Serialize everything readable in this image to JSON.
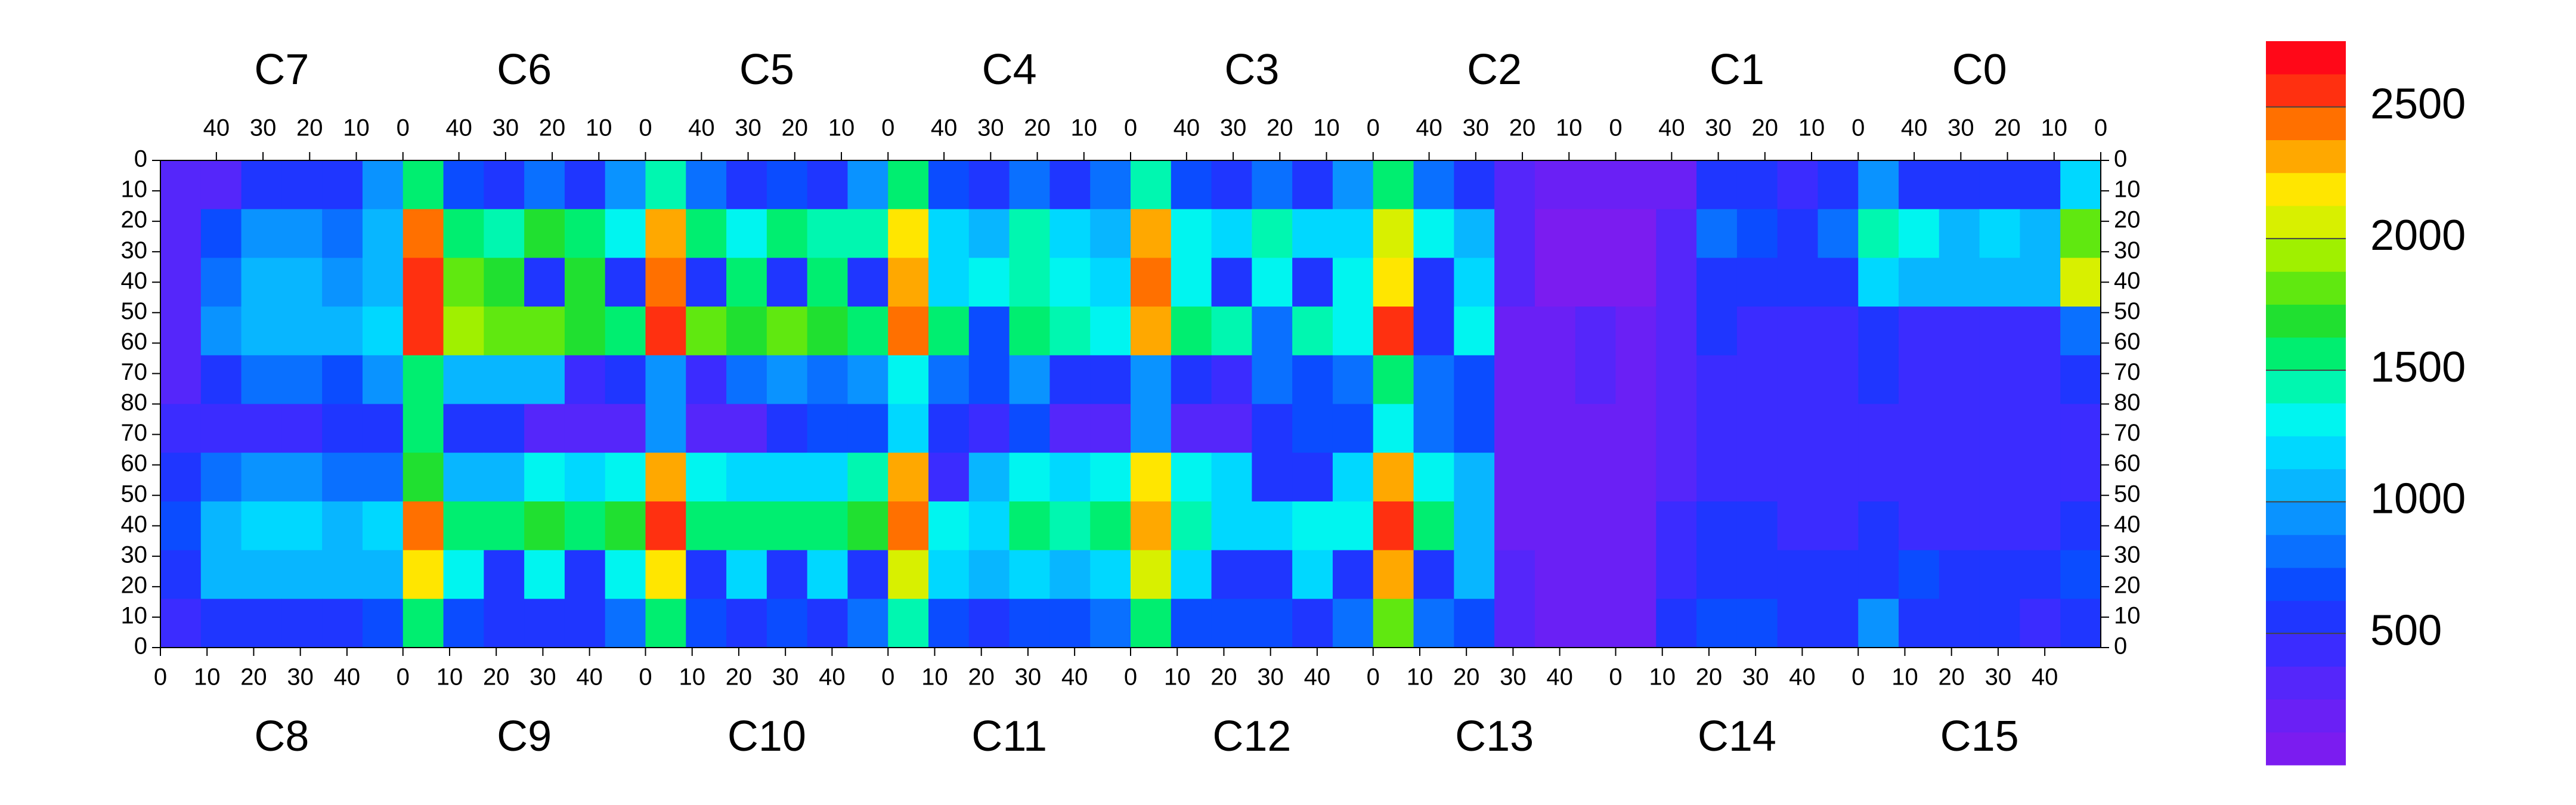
{
  "chart_data": {
    "type": "heatmap",
    "x2_categories": [
      "C7",
      "C6",
      "C5",
      "C4",
      "C3",
      "C2",
      "C1",
      "C0"
    ],
    "categories": [
      "C8",
      "C9",
      "C10",
      "C11",
      "C12",
      "C13",
      "C14",
      "C15"
    ],
    "xlim": [
      0,
      416
    ],
    "ylim": [
      0,
      160
    ],
    "y_reversed": true,
    "x2ticks": [
      {
        "value": 12,
        "label": "40"
      },
      {
        "value": 22,
        "label": "30"
      },
      {
        "value": 32,
        "label": "20"
      },
      {
        "value": 42,
        "label": "10"
      },
      {
        "value": 52,
        "label": "0"
      },
      {
        "value": 64,
        "label": "40"
      },
      {
        "value": 74,
        "label": "30"
      },
      {
        "value": 84,
        "label": "20"
      },
      {
        "value": 94,
        "label": "10"
      },
      {
        "value": 104,
        "label": "0"
      },
      {
        "value": 116,
        "label": "40"
      },
      {
        "value": 126,
        "label": "30"
      },
      {
        "value": 136,
        "label": "20"
      },
      {
        "value": 146,
        "label": "10"
      },
      {
        "value": 156,
        "label": "0"
      },
      {
        "value": 168,
        "label": "40"
      },
      {
        "value": 178,
        "label": "30"
      },
      {
        "value": 188,
        "label": "20"
      },
      {
        "value": 198,
        "label": "10"
      },
      {
        "value": 208,
        "label": "0"
      },
      {
        "value": 220,
        "label": "40"
      },
      {
        "value": 230,
        "label": "30"
      },
      {
        "value": 240,
        "label": "20"
      },
      {
        "value": 250,
        "label": "10"
      },
      {
        "value": 260,
        "label": "0"
      },
      {
        "value": 272,
        "label": "40"
      },
      {
        "value": 282,
        "label": "30"
      },
      {
        "value": 292,
        "label": "20"
      },
      {
        "value": 302,
        "label": "10"
      },
      {
        "value": 312,
        "label": "0"
      },
      {
        "value": 324,
        "label": "40"
      },
      {
        "value": 334,
        "label": "30"
      },
      {
        "value": 344,
        "label": "20"
      },
      {
        "value": 354,
        "label": "10"
      },
      {
        "value": 364,
        "label": "0"
      },
      {
        "value": 376,
        "label": "40"
      },
      {
        "value": 386,
        "label": "30"
      },
      {
        "value": 396,
        "label": "20"
      },
      {
        "value": 406,
        "label": "10"
      },
      {
        "value": 416,
        "label": "0"
      }
    ],
    "xticks": [
      0,
      10,
      20,
      30,
      40,
      {
        "value": 52,
        "label": "0"
      },
      {
        "value": 62,
        "label": "10"
      },
      {
        "value": 72,
        "label": "20"
      },
      {
        "value": 82,
        "label": "30"
      },
      {
        "value": 92,
        "label": "40"
      },
      {
        "value": 104,
        "label": "0"
      },
      {
        "value": 114,
        "label": "10"
      },
      {
        "value": 124,
        "label": "20"
      },
      {
        "value": 134,
        "label": "30"
      },
      {
        "value": 144,
        "label": "40"
      },
      {
        "value": 156,
        "label": "0"
      },
      {
        "value": 166,
        "label": "10"
      },
      {
        "value": 176,
        "label": "20"
      },
      {
        "value": 186,
        "label": "30"
      },
      {
        "value": 196,
        "label": "40"
      },
      {
        "value": 208,
        "label": "0"
      },
      {
        "value": 218,
        "label": "10"
      },
      {
        "value": 228,
        "label": "20"
      },
      {
        "value": 238,
        "label": "30"
      },
      {
        "value": 248,
        "label": "40"
      },
      {
        "value": 260,
        "label": "0"
      },
      {
        "value": 270,
        "label": "10"
      },
      {
        "value": 280,
        "label": "20"
      },
      {
        "value": 290,
        "label": "30"
      },
      {
        "value": 300,
        "label": "40"
      },
      {
        "value": 312,
        "label": "0"
      },
      {
        "value": 322,
        "label": "10"
      },
      {
        "value": 332,
        "label": "20"
      },
      {
        "value": 342,
        "label": "30"
      },
      {
        "value": 352,
        "label": "40"
      },
      {
        "value": 364,
        "label": "0"
      },
      {
        "value": 374,
        "label": "10"
      },
      {
        "value": 384,
        "label": "20"
      },
      {
        "value": 394,
        "label": "30"
      },
      {
        "value": 404,
        "label": "40"
      }
    ],
    "yticks": [
      0,
      10,
      20,
      30,
      40,
      50,
      60,
      70,
      80,
      {
        "value": 90,
        "label": "70"
      },
      {
        "value": 100,
        "label": "60"
      },
      {
        "value": 110,
        "label": "50"
      },
      {
        "value": 120,
        "label": "40"
      },
      {
        "value": 130,
        "label": "30"
      },
      {
        "value": 140,
        "label": "20"
      },
      {
        "value": 150,
        "label": "10"
      },
      {
        "value": 160,
        "label": "0"
      }
    ],
    "zlim": [
      0,
      2750
    ],
    "zticks": [
      500,
      1000,
      1500,
      2000,
      2500
    ],
    "palette": [
      "#7b1cf0",
      "#6a20f5",
      "#5526fa",
      "#3b2cff",
      "#1f36ff",
      "#0b4cff",
      "#0a70ff",
      "#0a93ff",
      "#08b6ff",
      "#00d8ff",
      "#00f5f0",
      "#00f7b0",
      "#00ee70",
      "#20e030",
      "#60e810",
      "#a0f000",
      "#d8f000",
      "#ffe600",
      "#ffa800",
      "#ff7000",
      "#ff3010",
      "#ff0818"
    ],
    "z": [
      [
        250,
        300,
        500,
        600,
        550,
        900,
        1500,
        700,
        500,
        800,
        500,
        900,
        1400,
        800,
        500,
        700,
        500,
        900,
        1600,
        700,
        600,
        800,
        500,
        800,
        1400,
        700,
        500,
        800,
        600,
        900,
        1500,
        800,
        600,
        250,
        150,
        150,
        150,
        200,
        500,
        500,
        400,
        600,
        900,
        600,
        500,
        500,
        600,
        1200
      ],
      [
        300,
        700,
        900,
        900,
        800,
        1000,
        2400,
        1600,
        1400,
        1700,
        1500,
        1300,
        2300,
        1500,
        1300,
        1500,
        1400,
        1400,
        2200,
        1200,
        1100,
        1400,
        1200,
        1100,
        2300,
        1300,
        1200,
        1400,
        1200,
        1200,
        2100,
        1300,
        1100,
        250,
        120,
        120,
        120,
        300,
        800,
        700,
        600,
        800,
        1400,
        1300,
        1100,
        1200,
        1000,
        1800
      ],
      [
        300,
        800,
        1000,
        1000,
        900,
        1100,
        2500,
        1800,
        1700,
        500,
        1700,
        500,
        2400,
        500,
        1600,
        500,
        1600,
        500,
        2300,
        1200,
        1300,
        1400,
        1300,
        1200,
        2400,
        1300,
        600,
        1300,
        600,
        1300,
        2200,
        600,
        1200,
        250,
        120,
        120,
        120,
        250,
        500,
        600,
        500,
        600,
        1200,
        1100,
        1000,
        1000,
        1100,
        2000
      ],
      [
        300,
        900,
        1100,
        1100,
        1000,
        1200,
        2600,
        1900,
        1800,
        1800,
        1700,
        1600,
        2500,
        1800,
        1700,
        1800,
        1700,
        1600,
        2400,
        1500,
        700,
        1500,
        1400,
        1300,
        2300,
        1500,
        1400,
        800,
        1400,
        1300,
        2500,
        600,
        1300,
        200,
        150,
        300,
        150,
        300,
        500,
        400,
        450,
        400,
        600,
        400,
        400,
        400,
        400,
        800
      ],
      [
        300,
        600,
        800,
        800,
        700,
        900,
        1600,
        1000,
        1000,
        1100,
        400,
        500,
        900,
        400,
        800,
        900,
        800,
        900,
        1300,
        800,
        700,
        900,
        500,
        500,
        900,
        500,
        400,
        800,
        700,
        800,
        1500,
        800,
        700,
        200,
        150,
        250,
        150,
        300,
        400,
        400,
        400,
        400,
        500,
        400,
        400,
        400,
        400,
        600
      ],
      [
        400,
        400,
        400,
        400,
        500,
        600,
        1500,
        600,
        500,
        250,
        250,
        300,
        900,
        300,
        300,
        600,
        700,
        700,
        1200,
        500,
        400,
        700,
        300,
        300,
        900,
        300,
        300,
        600,
        700,
        700,
        1300,
        800,
        700,
        200,
        150,
        150,
        150,
        300,
        400,
        400,
        400,
        400,
        400,
        400,
        400,
        400,
        400,
        450
      ],
      [
        500,
        800,
        900,
        900,
        800,
        800,
        1700,
        1000,
        1000,
        1300,
        1200,
        1300,
        2300,
        1300,
        1200,
        1200,
        1200,
        1400,
        2300,
        400,
        1100,
        1300,
        1200,
        1300,
        2200,
        1300,
        1200,
        500,
        500,
        1200,
        2300,
        1300,
        1000,
        200,
        150,
        150,
        150,
        300,
        400,
        450,
        400,
        400,
        450,
        400,
        400,
        400,
        400,
        450
      ],
      [
        700,
        1100,
        1200,
        1200,
        1100,
        1200,
        2400,
        1600,
        1500,
        1700,
        1600,
        1700,
        2500,
        1600,
        1500,
        1600,
        1600,
        1700,
        2400,
        1300,
        1200,
        1500,
        1400,
        1500,
        2300,
        1400,
        1200,
        1200,
        1300,
        1300,
        2500,
        1500,
        1100,
        200,
        150,
        150,
        150,
        400,
        500,
        500,
        450,
        450,
        500,
        450,
        450,
        450,
        450,
        500
      ],
      [
        600,
        1000,
        1100,
        1000,
        1000,
        1100,
        2200,
        1300,
        500,
        1300,
        500,
        1300,
        2200,
        500,
        1200,
        500,
        1200,
        500,
        2100,
        1200,
        1100,
        1200,
        1100,
        1200,
        2100,
        1200,
        500,
        500,
        1200,
        500,
        2300,
        500,
        1000,
        250,
        150,
        150,
        150,
        400,
        600,
        600,
        600,
        500,
        600,
        700,
        600,
        600,
        600,
        700
      ],
      [
        400,
        500,
        600,
        500,
        500,
        700,
        1500,
        700,
        600,
        500,
        600,
        800,
        1600,
        700,
        600,
        700,
        600,
        800,
        1400,
        700,
        600,
        700,
        700,
        800,
        1500,
        700,
        700,
        700,
        600,
        800,
        1800,
        800,
        700,
        300,
        150,
        150,
        150,
        600,
        700,
        700,
        600,
        600,
        900,
        600,
        500,
        500,
        400,
        600
      ]
    ]
  }
}
